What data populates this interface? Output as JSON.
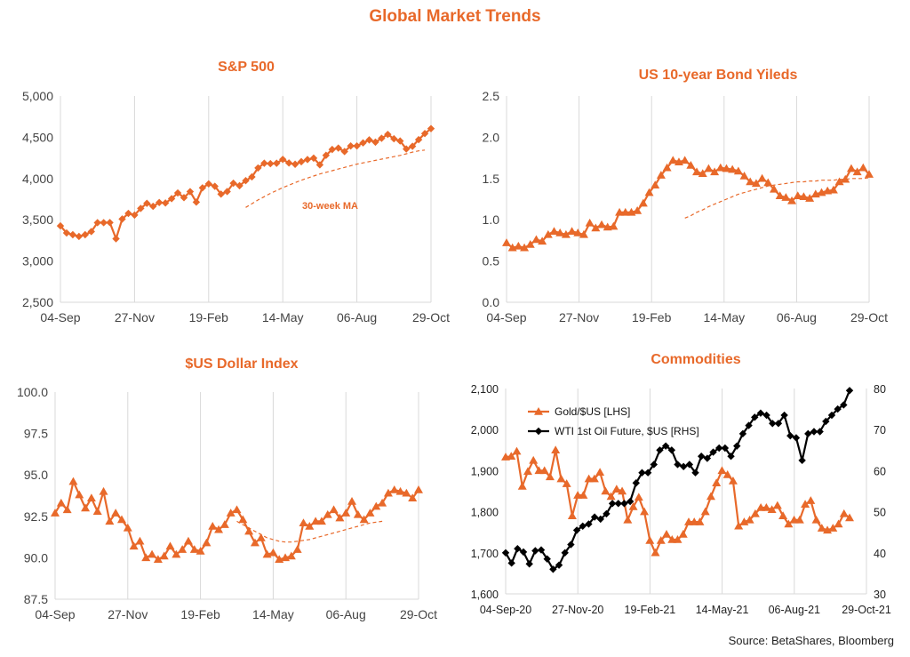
{
  "title": "Global Market Trends",
  "source": "Source: BetaShares, Bloomberg",
  "colors": {
    "accent": "#E8692A",
    "oil": "#000000",
    "grid": "#d9d9d9"
  },
  "chart_data": [
    {
      "type": "line",
      "title": "S&P 500",
      "x_tick_labels": [
        "04-Sep",
        "27-Nov",
        "19-Feb",
        "14-May",
        "06-Aug",
        "29-Oct"
      ],
      "y_tick_labels": [
        "2,500",
        "3,000",
        "3,500",
        "4,000",
        "4,500",
        "5,000"
      ],
      "ylim": [
        2500,
        5000
      ],
      "grid": "vertical",
      "annotation": "30-week MA",
      "series": [
        {
          "values": [
            3426,
            3340,
            3319,
            3298,
            3319,
            3357,
            3465,
            3465,
            3466,
            3270,
            3509,
            3577,
            3557,
            3638,
            3699,
            3663,
            3709,
            3703,
            3756,
            3825,
            3768,
            3841,
            3714,
            3887,
            3935,
            3906,
            3811,
            3842,
            3943,
            3913,
            3974,
            4020,
            4128,
            4185,
            4180,
            4185,
            4232,
            4188,
            4173,
            4204,
            4230,
            4247,
            4166,
            4281,
            4352,
            4369,
            4327,
            4395,
            4395,
            4432,
            4468,
            4441,
            4488,
            4535,
            4482,
            4455,
            4358,
            4391,
            4471,
            4545,
            4605
          ]
        },
        {
          "style": "dashed",
          "x_start": 30,
          "values": [
            3650,
            3695,
            3740,
            3780,
            3820,
            3855,
            3890,
            3920,
            3950,
            3980,
            4005,
            4030,
            4055,
            4075,
            4095,
            4115,
            4135,
            4155,
            4175,
            4190,
            4205,
            4220,
            4235,
            4250,
            4265,
            4280,
            4300,
            4320,
            4335,
            4345
          ]
        }
      ]
    },
    {
      "type": "line",
      "title": "US 10-year Bond Yileds",
      "x_tick_labels": [
        "04-Sep",
        "27-Nov",
        "19-Feb",
        "14-May",
        "06-Aug",
        "29-Oct"
      ],
      "y_tick_labels": [
        "0.0",
        "0.5",
        "1.0",
        "1.5",
        "2.0",
        "2.5"
      ],
      "ylim": [
        0,
        2.5
      ],
      "grid": "vertical",
      "series": [
        {
          "values": [
            0.72,
            0.66,
            0.68,
            0.66,
            0.7,
            0.76,
            0.74,
            0.82,
            0.86,
            0.84,
            0.82,
            0.86,
            0.84,
            0.82,
            0.96,
            0.9,
            0.94,
            0.91,
            0.92,
            1.09,
            1.09,
            1.09,
            1.11,
            1.2,
            1.33,
            1.42,
            1.54,
            1.63,
            1.72,
            1.7,
            1.72,
            1.66,
            1.58,
            1.56,
            1.62,
            1.58,
            1.63,
            1.62,
            1.61,
            1.59,
            1.53,
            1.46,
            1.44,
            1.5,
            1.45,
            1.37,
            1.29,
            1.27,
            1.23,
            1.29,
            1.28,
            1.26,
            1.31,
            1.33,
            1.35,
            1.36,
            1.46,
            1.49,
            1.62,
            1.58,
            1.63,
            1.55
          ]
        },
        {
          "style": "dashed",
          "x_start": 30,
          "values": [
            1.02,
            1.05,
            1.09,
            1.12,
            1.16,
            1.19,
            1.22,
            1.25,
            1.28,
            1.31,
            1.33,
            1.35,
            1.37,
            1.39,
            1.41,
            1.42,
            1.43,
            1.44,
            1.45,
            1.46,
            1.46,
            1.47,
            1.47,
            1.48,
            1.48,
            1.48,
            1.49,
            1.49,
            1.5,
            1.5,
            1.5,
            1.51
          ]
        }
      ]
    },
    {
      "type": "line",
      "title": "$US Dollar Index",
      "x_tick_labels": [
        "04-Sep",
        "27-Nov",
        "19-Feb",
        "14-May",
        "06-Aug",
        "29-Oct"
      ],
      "y_tick_labels": [
        "87.5",
        "90.0",
        "92.5",
        "95.0",
        "97.5",
        "100.0"
      ],
      "ylim": [
        87.5,
        100
      ],
      "grid": "vertical",
      "series": [
        {
          "values": [
            92.7,
            93.3,
            92.9,
            94.6,
            93.8,
            93.0,
            93.6,
            92.8,
            94.0,
            92.2,
            92.7,
            92.3,
            91.8,
            90.7,
            91.0,
            90.0,
            90.2,
            89.9,
            90.1,
            90.7,
            90.2,
            90.5,
            91.0,
            90.5,
            90.4,
            90.9,
            91.9,
            91.7,
            92.0,
            92.7,
            92.9,
            92.3,
            91.6,
            90.9,
            91.2,
            90.2,
            90.3,
            89.9,
            90.0,
            90.1,
            90.5,
            92.1,
            91.9,
            92.2,
            92.2,
            92.6,
            92.9,
            92.4,
            92.7,
            93.4,
            92.6,
            92.3,
            92.7,
            93.1,
            93.3,
            93.9,
            94.1,
            94.0,
            93.9,
            93.6,
            94.1
          ]
        },
        {
          "style": "dashed",
          "x_start": 30,
          "values": [
            92.2,
            92.0,
            91.8,
            91.6,
            91.4,
            91.2,
            91.1,
            91.0,
            90.95,
            90.95,
            91.0,
            91.05,
            91.1,
            91.2,
            91.3,
            91.4,
            91.5,
            91.6,
            91.7,
            91.8,
            91.9,
            92.0,
            92.1,
            92.15,
            92.2
          ]
        }
      ]
    },
    {
      "type": "line",
      "title": "Commodities",
      "x_tick_labels": [
        "04-Sep-20",
        "27-Nov-20",
        "19-Feb-21",
        "14-May-21",
        "06-Aug-21",
        "29-Oct-21"
      ],
      "y_left_tick_labels": [
        "1,600",
        "1,700",
        "1,800",
        "1,900",
        "2,000",
        "2,100"
      ],
      "y_right_tick_labels": [
        "30",
        "40",
        "50",
        "60",
        "70",
        "80"
      ],
      "ylim_left": [
        1600,
        2100
      ],
      "ylim_right": [
        30,
        80
      ],
      "grid": "vertical",
      "legend": "top-left",
      "series": [
        {
          "name": "Gold/$US [LHS]",
          "axis": "left",
          "values": [
            1933,
            1935,
            1947,
            1862,
            1898,
            1925,
            1900,
            1900,
            1885,
            1950,
            1880,
            1868,
            1790,
            1840,
            1840,
            1880,
            1880,
            1896,
            1850,
            1837,
            1855,
            1850,
            1780,
            1812,
            1835,
            1800,
            1730,
            1700,
            1730,
            1745,
            1732,
            1732,
            1745,
            1775,
            1775,
            1775,
            1800,
            1837,
            1870,
            1900,
            1890,
            1875,
            1765,
            1775,
            1780,
            1795,
            1810,
            1810,
            1805,
            1815,
            1790,
            1770,
            1780,
            1780,
            1818,
            1827,
            1780,
            1760,
            1755,
            1760,
            1770,
            1795,
            1785
          ]
        },
        {
          "name": "WTI 1st Oil Future, $US [RHS]",
          "axis": "right",
          "values": [
            40.0,
            37.5,
            41.0,
            40.2,
            37.3,
            40.5,
            40.7,
            38.5,
            36.0,
            37.0,
            40.0,
            42.0,
            45.5,
            46.5,
            47.0,
            48.7,
            48.2,
            49.5,
            52.0,
            52.0,
            52.0,
            52.5,
            57.0,
            59.5,
            59.5,
            61.5,
            65.0,
            66.0,
            65.0,
            61.5,
            61.0,
            61.5,
            59.5,
            63.5,
            63.0,
            64.5,
            65.5,
            65.5,
            63.5,
            66.0,
            69.0,
            71.0,
            73.0,
            74.0,
            73.5,
            71.5,
            71.5,
            73.5,
            68.5,
            68.0,
            62.5,
            69.0,
            69.5,
            69.5,
            72.0,
            73.5,
            75.0,
            76.0,
            79.5
          ]
        }
      ]
    }
  ]
}
